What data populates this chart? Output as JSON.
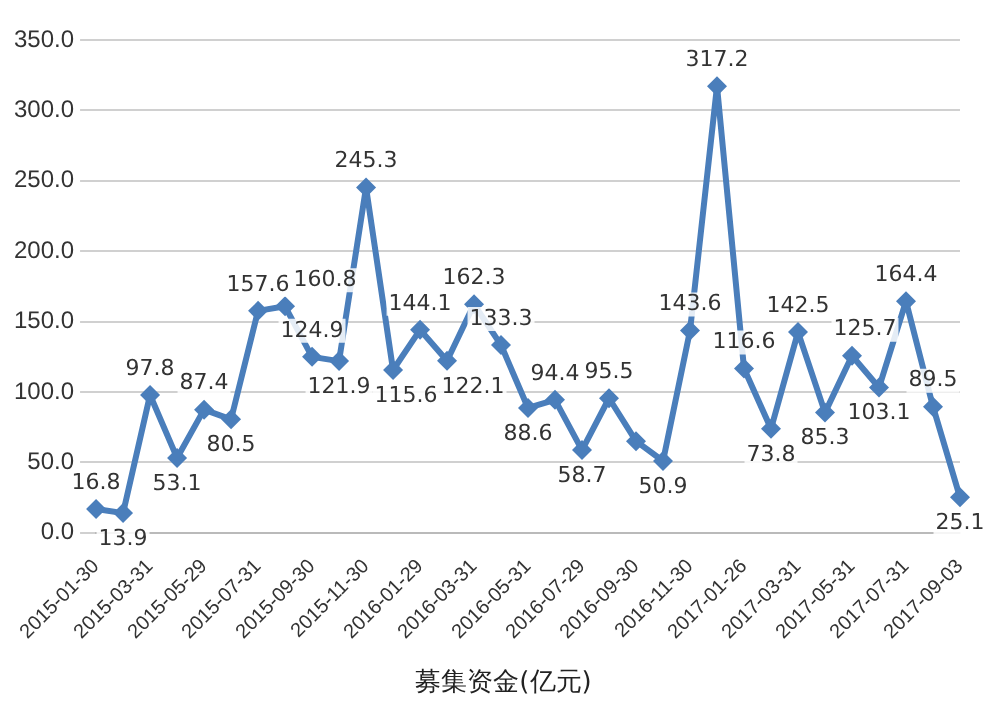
{
  "chart_data": {
    "type": "line",
    "categories": [
      "2015-01-30",
      null,
      "2015-03-31",
      null,
      "2015-05-29",
      null,
      "2015-07-31",
      null,
      "2015-09-30",
      null,
      "2015-11-30",
      null,
      "2016-01-29",
      null,
      "2016-03-31",
      null,
      "2016-05-31",
      null,
      "2016-07-29",
      null,
      "2016-09-30",
      null,
      "2016-11-30",
      null,
      "2017-01-26",
      null,
      "2017-03-31",
      null,
      "2017-05-31",
      null,
      "2017-07-31",
      null,
      "2017-09-03"
    ],
    "series": [
      {
        "name": "募集资金(亿元)",
        "color": "#4a7ebb",
        "value_labels": [
          "16.8",
          "13.9",
          "97.8",
          "53.1",
          "87.4",
          "80.5",
          "157.6",
          "160.8",
          "124.9",
          "121.9",
          "245.3",
          "115.6",
          "144.1",
          "122.1",
          "162.3",
          "133.3",
          "88.6",
          "94.4",
          "58.7",
          "95.5",
          null,
          "50.9",
          "143.6",
          "317.2",
          "116.6",
          "73.8",
          "142.5",
          "85.3",
          "125.7",
          "103.1",
          "164.4",
          "89.5",
          "25.1"
        ],
        "values": [
          16.8,
          13.9,
          97.8,
          53.1,
          87.4,
          80.5,
          157.6,
          160.8,
          124.9,
          121.9,
          245.3,
          115.6,
          144.1,
          122.1,
          162.3,
          133.3,
          88.6,
          94.4,
          58.7,
          95.5,
          65.0,
          50.9,
          143.6,
          317.2,
          116.6,
          73.8,
          142.5,
          85.3,
          125.7,
          103.1,
          164.4,
          89.5,
          25.1
        ]
      }
    ],
    "ylim": [
      0,
      350
    ],
    "yticks": [
      {
        "value": 0,
        "label": "0.0"
      },
      {
        "value": 50,
        "label": "50.0"
      },
      {
        "value": 100,
        "label": "100.0"
      },
      {
        "value": 150,
        "label": "150.0"
      },
      {
        "value": 200,
        "label": "200.0"
      },
      {
        "value": 250,
        "label": "250.0"
      },
      {
        "value": 300,
        "label": "300.0"
      },
      {
        "value": 350,
        "label": "350.0"
      }
    ],
    "grid": "y",
    "legend": "bottom",
    "marker": "diamond",
    "line_style": "solid"
  }
}
